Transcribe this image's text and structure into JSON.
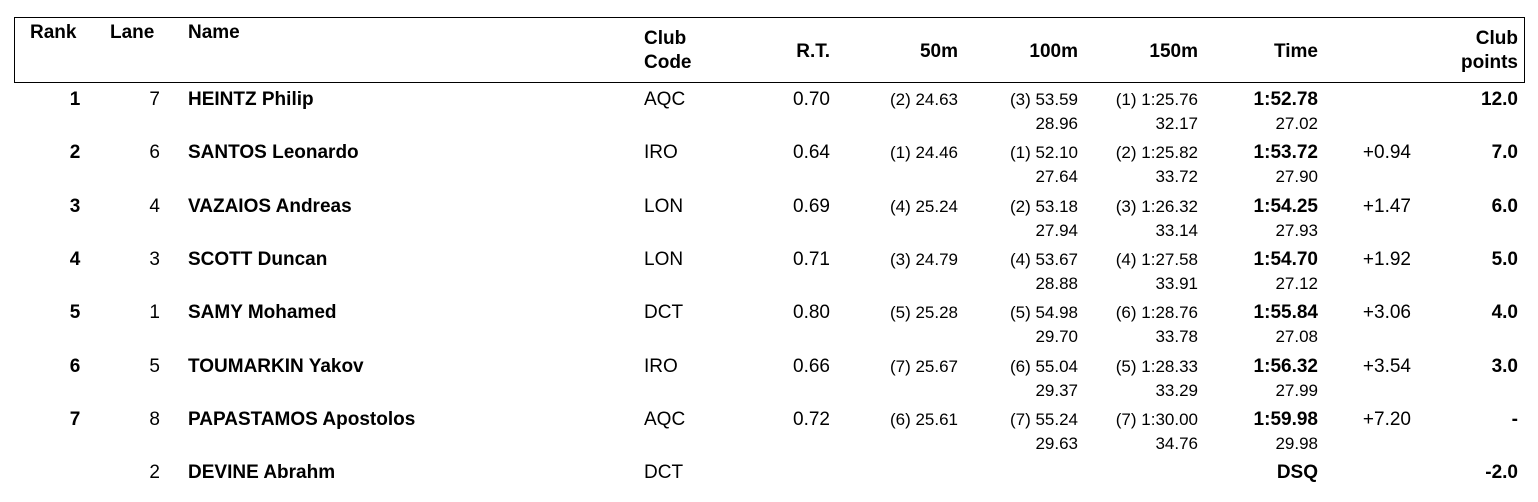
{
  "header": {
    "rank": "Rank",
    "lane": "Lane",
    "name": "Name",
    "club_code_1": "Club",
    "club_code_2": "Code",
    "rt": "R.T.",
    "s50": "50m",
    "s100": "100m",
    "s150": "150m",
    "time": "Time",
    "points_1": "Club",
    "points_2": "points"
  },
  "rows": [
    {
      "rank": "1",
      "lane": "7",
      "name": "HEINTZ Philip",
      "club": "AQC",
      "rt": "0.70",
      "s50": "(2) 24.63",
      "s100": "(3) 53.59",
      "s100_split": "28.96",
      "s150": "(1) 1:25.76",
      "s150_split": "32.17",
      "time": "1:52.78",
      "time_split": "27.02",
      "behind": "",
      "points": "12.0"
    },
    {
      "rank": "2",
      "lane": "6",
      "name": "SANTOS Leonardo",
      "club": "IRO",
      "rt": "0.64",
      "s50": "(1) 24.46",
      "s100": "(1) 52.10",
      "s100_split": "27.64",
      "s150": "(2) 1:25.82",
      "s150_split": "33.72",
      "time": "1:53.72",
      "time_split": "27.90",
      "behind": "+0.94",
      "points": "7.0"
    },
    {
      "rank": "3",
      "lane": "4",
      "name": "VAZAIOS Andreas",
      "club": "LON",
      "rt": "0.69",
      "s50": "(4) 25.24",
      "s100": "(2) 53.18",
      "s100_split": "27.94",
      "s150": "(3) 1:26.32",
      "s150_split": "33.14",
      "time": "1:54.25",
      "time_split": "27.93",
      "behind": "+1.47",
      "points": "6.0"
    },
    {
      "rank": "4",
      "lane": "3",
      "name": "SCOTT Duncan",
      "club": "LON",
      "rt": "0.71",
      "s50": "(3) 24.79",
      "s100": "(4) 53.67",
      "s100_split": "28.88",
      "s150": "(4) 1:27.58",
      "s150_split": "33.91",
      "time": "1:54.70",
      "time_split": "27.12",
      "behind": "+1.92",
      "points": "5.0"
    },
    {
      "rank": "5",
      "lane": "1",
      "name": "SAMY Mohamed",
      "club": "DCT",
      "rt": "0.80",
      "s50": "(5) 25.28",
      "s100": "(5) 54.98",
      "s100_split": "29.70",
      "s150": "(6) 1:28.76",
      "s150_split": "33.78",
      "time": "1:55.84",
      "time_split": "27.08",
      "behind": "+3.06",
      "points": "4.0"
    },
    {
      "rank": "6",
      "lane": "5",
      "name": "TOUMARKIN Yakov",
      "club": "IRO",
      "rt": "0.66",
      "s50": "(7) 25.67",
      "s100": "(6) 55.04",
      "s100_split": "29.37",
      "s150": "(5) 1:28.33",
      "s150_split": "33.29",
      "time": "1:56.32",
      "time_split": "27.99",
      "behind": "+3.54",
      "points": "3.0"
    },
    {
      "rank": "7",
      "lane": "8",
      "name": "PAPASTAMOS Apostolos",
      "club": "AQC",
      "rt": "0.72",
      "s50": "(6) 25.61",
      "s100": "(7) 55.24",
      "s100_split": "29.63",
      "s150": "(7) 1:30.00",
      "s150_split": "34.76",
      "time": "1:59.98",
      "time_split": "29.98",
      "behind": "+7.20",
      "points": "-"
    },
    {
      "rank": "",
      "lane": "2",
      "name": "DEVINE Abrahm",
      "club": "DCT",
      "rt": "",
      "s50": "",
      "s100": "",
      "s100_split": "",
      "s150": "",
      "s150_split": "",
      "time": "DSQ",
      "time_split": "",
      "behind": "",
      "points": "-2.0"
    }
  ]
}
